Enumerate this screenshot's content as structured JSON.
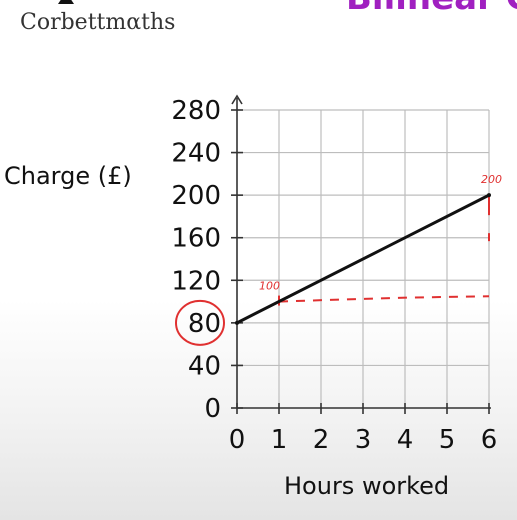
{
  "header": {
    "brand": "Corbettmαths",
    "title_fragment": "Bilinear G"
  },
  "chart_data": {
    "type": "line",
    "xlabel": "Hours worked",
    "ylabel": "Charge (£)",
    "x_ticks": [
      "0",
      "1",
      "2",
      "3",
      "4",
      "5",
      "6"
    ],
    "y_ticks": [
      "0",
      "40",
      "80",
      "120",
      "160",
      "200",
      "240",
      "280"
    ],
    "xlim": [
      0,
      6
    ],
    "ylim": [
      0,
      280
    ],
    "grid": true,
    "series": [
      {
        "x": [
          0,
          6
        ],
        "y": [
          80,
          200
        ],
        "color": "#111111"
      }
    ],
    "annotations": {
      "dashed_line": {
        "x": [
          1,
          6
        ],
        "y": [
          100,
          105
        ],
        "color": "#e03030"
      },
      "label_at_1": {
        "text": "100",
        "x": 1,
        "y": 100
      },
      "label_at_6": {
        "text": "200",
        "x": 6,
        "y": 200
      },
      "circled_tick": "80"
    }
  },
  "colors": {
    "annotation": "#e03030",
    "title": "#a020c0",
    "line": "#111111"
  }
}
